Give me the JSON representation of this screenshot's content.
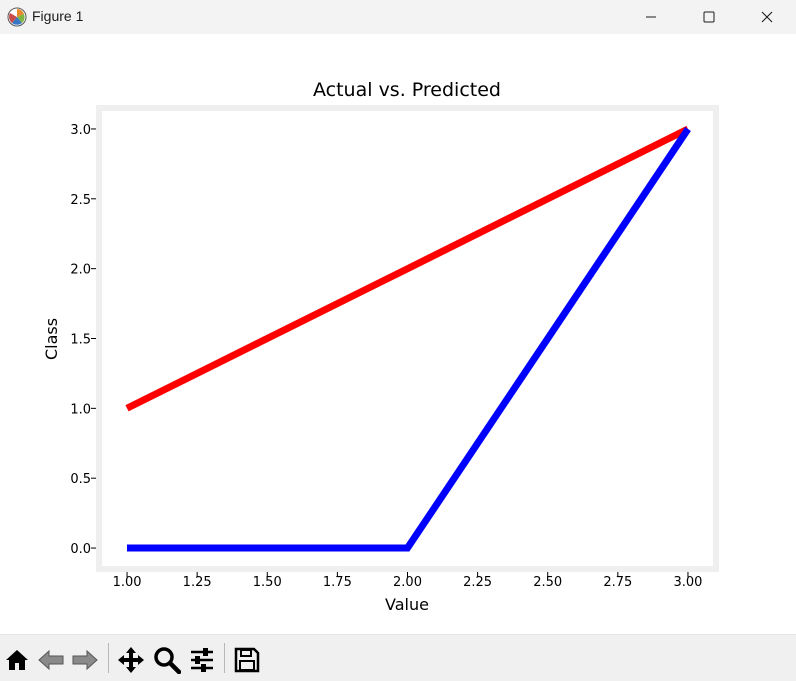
{
  "window": {
    "title": "Figure 1",
    "controls": [
      "minimize",
      "maximize",
      "close"
    ]
  },
  "toolbar": {
    "buttons": [
      {
        "name": "home-icon",
        "tooltip": "Reset original view"
      },
      {
        "name": "back-icon",
        "tooltip": "Back"
      },
      {
        "name": "forward-icon",
        "tooltip": "Forward"
      },
      {
        "name": "pan-icon",
        "tooltip": "Pan"
      },
      {
        "name": "zoom-icon",
        "tooltip": "Zoom"
      },
      {
        "name": "configure-subplots-icon",
        "tooltip": "Configure subplots"
      },
      {
        "name": "save-icon",
        "tooltip": "Save"
      }
    ]
  },
  "chart_data": {
    "type": "line",
    "title": "Actual vs. Predicted",
    "xlabel": "Value",
    "ylabel": "Class",
    "xlim": [
      0.9,
      3.1
    ],
    "ylim": [
      -0.15,
      3.15
    ],
    "xticks": [
      1.0,
      1.25,
      1.5,
      1.75,
      2.0,
      2.25,
      2.5,
      2.75,
      3.0
    ],
    "xtick_labels": [
      "1.00",
      "1.25",
      "1.50",
      "1.75",
      "2.00",
      "2.25",
      "2.50",
      "2.75",
      "3.00"
    ],
    "yticks": [
      0.0,
      0.5,
      1.0,
      1.5,
      2.0,
      2.5,
      3.0
    ],
    "ytick_labels": [
      "0.0",
      "0.5",
      "1.0",
      "1.5",
      "2.0",
      "2.5",
      "3.0"
    ],
    "grid": false,
    "series": [
      {
        "color": "#ff0000",
        "x": [
          1,
          2,
          3
        ],
        "y": [
          1,
          2,
          3
        ]
      },
      {
        "color": "#0000ff",
        "x": [
          1,
          2,
          3
        ],
        "y": [
          0,
          0,
          3
        ]
      }
    ]
  }
}
